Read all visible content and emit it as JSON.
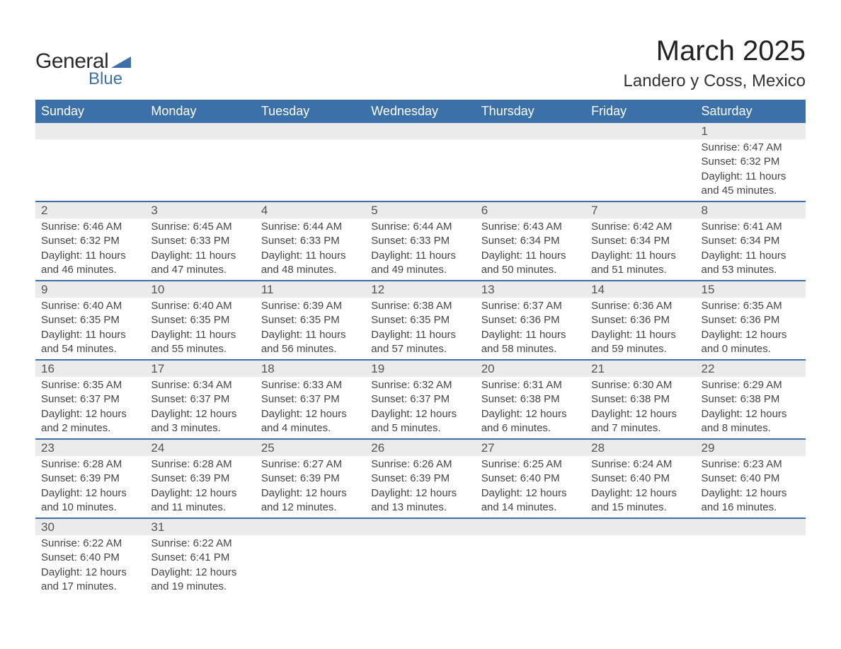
{
  "logo": {
    "text1": "General",
    "text2": "Blue",
    "shape_color": "#3b71a8"
  },
  "title": "March 2025",
  "location": "Landero y Coss, Mexico",
  "colors": {
    "header_bg": "#3b71a8",
    "header_text": "#ffffff",
    "daynum_bg": "#ebebeb",
    "row_border": "#3b71a8",
    "body_text": "#444444"
  },
  "day_headers": [
    "Sunday",
    "Monday",
    "Tuesday",
    "Wednesday",
    "Thursday",
    "Friday",
    "Saturday"
  ],
  "weeks": [
    {
      "days": [
        {
          "n": "",
          "lines": []
        },
        {
          "n": "",
          "lines": []
        },
        {
          "n": "",
          "lines": []
        },
        {
          "n": "",
          "lines": []
        },
        {
          "n": "",
          "lines": []
        },
        {
          "n": "",
          "lines": []
        },
        {
          "n": "1",
          "lines": [
            "Sunrise: 6:47 AM",
            "Sunset: 6:32 PM",
            "Daylight: 11 hours and 45 minutes."
          ]
        }
      ]
    },
    {
      "days": [
        {
          "n": "2",
          "lines": [
            "Sunrise: 6:46 AM",
            "Sunset: 6:32 PM",
            "Daylight: 11 hours and 46 minutes."
          ]
        },
        {
          "n": "3",
          "lines": [
            "Sunrise: 6:45 AM",
            "Sunset: 6:33 PM",
            "Daylight: 11 hours and 47 minutes."
          ]
        },
        {
          "n": "4",
          "lines": [
            "Sunrise: 6:44 AM",
            "Sunset: 6:33 PM",
            "Daylight: 11 hours and 48 minutes."
          ]
        },
        {
          "n": "5",
          "lines": [
            "Sunrise: 6:44 AM",
            "Sunset: 6:33 PM",
            "Daylight: 11 hours and 49 minutes."
          ]
        },
        {
          "n": "6",
          "lines": [
            "Sunrise: 6:43 AM",
            "Sunset: 6:34 PM",
            "Daylight: 11 hours and 50 minutes."
          ]
        },
        {
          "n": "7",
          "lines": [
            "Sunrise: 6:42 AM",
            "Sunset: 6:34 PM",
            "Daylight: 11 hours and 51 minutes."
          ]
        },
        {
          "n": "8",
          "lines": [
            "Sunrise: 6:41 AM",
            "Sunset: 6:34 PM",
            "Daylight: 11 hours and 53 minutes."
          ]
        }
      ]
    },
    {
      "days": [
        {
          "n": "9",
          "lines": [
            "Sunrise: 6:40 AM",
            "Sunset: 6:35 PM",
            "Daylight: 11 hours and 54 minutes."
          ]
        },
        {
          "n": "10",
          "lines": [
            "Sunrise: 6:40 AM",
            "Sunset: 6:35 PM",
            "Daylight: 11 hours and 55 minutes."
          ]
        },
        {
          "n": "11",
          "lines": [
            "Sunrise: 6:39 AM",
            "Sunset: 6:35 PM",
            "Daylight: 11 hours and 56 minutes."
          ]
        },
        {
          "n": "12",
          "lines": [
            "Sunrise: 6:38 AM",
            "Sunset: 6:35 PM",
            "Daylight: 11 hours and 57 minutes."
          ]
        },
        {
          "n": "13",
          "lines": [
            "Sunrise: 6:37 AM",
            "Sunset: 6:36 PM",
            "Daylight: 11 hours and 58 minutes."
          ]
        },
        {
          "n": "14",
          "lines": [
            "Sunrise: 6:36 AM",
            "Sunset: 6:36 PM",
            "Daylight: 11 hours and 59 minutes."
          ]
        },
        {
          "n": "15",
          "lines": [
            "Sunrise: 6:35 AM",
            "Sunset: 6:36 PM",
            "Daylight: 12 hours and 0 minutes."
          ]
        }
      ]
    },
    {
      "days": [
        {
          "n": "16",
          "lines": [
            "Sunrise: 6:35 AM",
            "Sunset: 6:37 PM",
            "Daylight: 12 hours and 2 minutes."
          ]
        },
        {
          "n": "17",
          "lines": [
            "Sunrise: 6:34 AM",
            "Sunset: 6:37 PM",
            "Daylight: 12 hours and 3 minutes."
          ]
        },
        {
          "n": "18",
          "lines": [
            "Sunrise: 6:33 AM",
            "Sunset: 6:37 PM",
            "Daylight: 12 hours and 4 minutes."
          ]
        },
        {
          "n": "19",
          "lines": [
            "Sunrise: 6:32 AM",
            "Sunset: 6:37 PM",
            "Daylight: 12 hours and 5 minutes."
          ]
        },
        {
          "n": "20",
          "lines": [
            "Sunrise: 6:31 AM",
            "Sunset: 6:38 PM",
            "Daylight: 12 hours and 6 minutes."
          ]
        },
        {
          "n": "21",
          "lines": [
            "Sunrise: 6:30 AM",
            "Sunset: 6:38 PM",
            "Daylight: 12 hours and 7 minutes."
          ]
        },
        {
          "n": "22",
          "lines": [
            "Sunrise: 6:29 AM",
            "Sunset: 6:38 PM",
            "Daylight: 12 hours and 8 minutes."
          ]
        }
      ]
    },
    {
      "days": [
        {
          "n": "23",
          "lines": [
            "Sunrise: 6:28 AM",
            "Sunset: 6:39 PM",
            "Daylight: 12 hours and 10 minutes."
          ]
        },
        {
          "n": "24",
          "lines": [
            "Sunrise: 6:28 AM",
            "Sunset: 6:39 PM",
            "Daylight: 12 hours and 11 minutes."
          ]
        },
        {
          "n": "25",
          "lines": [
            "Sunrise: 6:27 AM",
            "Sunset: 6:39 PM",
            "Daylight: 12 hours and 12 minutes."
          ]
        },
        {
          "n": "26",
          "lines": [
            "Sunrise: 6:26 AM",
            "Sunset: 6:39 PM",
            "Daylight: 12 hours and 13 minutes."
          ]
        },
        {
          "n": "27",
          "lines": [
            "Sunrise: 6:25 AM",
            "Sunset: 6:40 PM",
            "Daylight: 12 hours and 14 minutes."
          ]
        },
        {
          "n": "28",
          "lines": [
            "Sunrise: 6:24 AM",
            "Sunset: 6:40 PM",
            "Daylight: 12 hours and 15 minutes."
          ]
        },
        {
          "n": "29",
          "lines": [
            "Sunrise: 6:23 AM",
            "Sunset: 6:40 PM",
            "Daylight: 12 hours and 16 minutes."
          ]
        }
      ]
    },
    {
      "days": [
        {
          "n": "30",
          "lines": [
            "Sunrise: 6:22 AM",
            "Sunset: 6:40 PM",
            "Daylight: 12 hours and 17 minutes."
          ]
        },
        {
          "n": "31",
          "lines": [
            "Sunrise: 6:22 AM",
            "Sunset: 6:41 PM",
            "Daylight: 12 hours and 19 minutes."
          ]
        },
        {
          "n": "",
          "lines": []
        },
        {
          "n": "",
          "lines": []
        },
        {
          "n": "",
          "lines": []
        },
        {
          "n": "",
          "lines": []
        },
        {
          "n": "",
          "lines": []
        }
      ]
    }
  ]
}
